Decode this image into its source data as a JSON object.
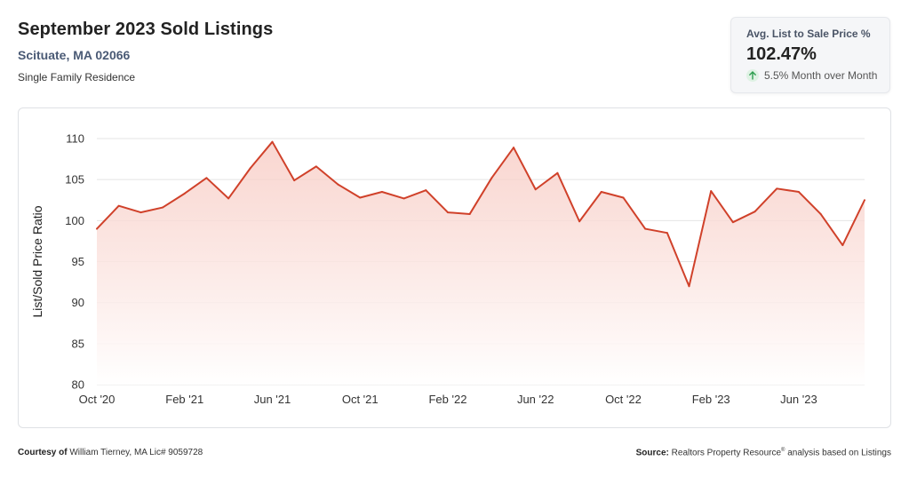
{
  "header": {
    "title": "September 2023 Sold Listings",
    "subtitle": "Scituate, MA 02066",
    "subtext": "Single Family Residence"
  },
  "kpi": {
    "label": "Avg. List to Sale Price %",
    "value": "102.47%",
    "change": "5.5% Month over Month",
    "change_icon": "arrow-up-icon",
    "change_color": "#2e9e4f"
  },
  "footer": {
    "courtesy_label": "Courtesy of",
    "courtesy_text": "William Tierney, MA Lic# 9059728",
    "source_label": "Source:",
    "source_text_1": "Realtors Property Resource",
    "source_reg": "®",
    "source_text_2": " analysis based on Listings"
  },
  "colors": {
    "line": "#d0412a",
    "fill_top": "#f7c9c1",
    "fill_bottom": "#ffffff",
    "grid": "#e4e4e4"
  },
  "chart_data": {
    "type": "area",
    "title": "",
    "xlabel": "",
    "ylabel": "List/Sold Price Ratio",
    "ylim": [
      80,
      110
    ],
    "yticks": [
      80,
      85,
      90,
      95,
      100,
      105,
      110
    ],
    "grid": true,
    "x_tick_labels": [
      {
        "index": 0,
        "label": "Oct '20"
      },
      {
        "index": 4,
        "label": "Feb '21"
      },
      {
        "index": 8,
        "label": "Jun '21"
      },
      {
        "index": 12,
        "label": "Oct '21"
      },
      {
        "index": 16,
        "label": "Feb '22"
      },
      {
        "index": 20,
        "label": "Jun '22"
      },
      {
        "index": 24,
        "label": "Oct '22"
      },
      {
        "index": 28,
        "label": "Feb '23"
      },
      {
        "index": 32,
        "label": "Jun '23"
      }
    ],
    "x": [
      "2020-10",
      "2020-11",
      "2020-12",
      "2021-01",
      "2021-02",
      "2021-03",
      "2021-04",
      "2021-05",
      "2021-06",
      "2021-07",
      "2021-08",
      "2021-09",
      "2021-10",
      "2021-11",
      "2021-12",
      "2022-01",
      "2022-02",
      "2022-03",
      "2022-04",
      "2022-05",
      "2022-06",
      "2022-07",
      "2022-08",
      "2022-09",
      "2022-10",
      "2022-11",
      "2022-12",
      "2023-01",
      "2023-02",
      "2023-03",
      "2023-04",
      "2023-05",
      "2023-06",
      "2023-07",
      "2023-08",
      "2023-09"
    ],
    "values": [
      99.0,
      101.8,
      101.0,
      101.6,
      103.3,
      105.2,
      102.7,
      106.4,
      109.6,
      104.9,
      106.6,
      104.4,
      102.8,
      103.5,
      102.7,
      103.7,
      101.0,
      100.8,
      105.2,
      108.9,
      103.8,
      105.8,
      99.9,
      103.5,
      102.8,
      99.0,
      98.5,
      92.0,
      103.6,
      99.8,
      101.1,
      103.9,
      103.5,
      100.8,
      97.0,
      102.5
    ]
  }
}
